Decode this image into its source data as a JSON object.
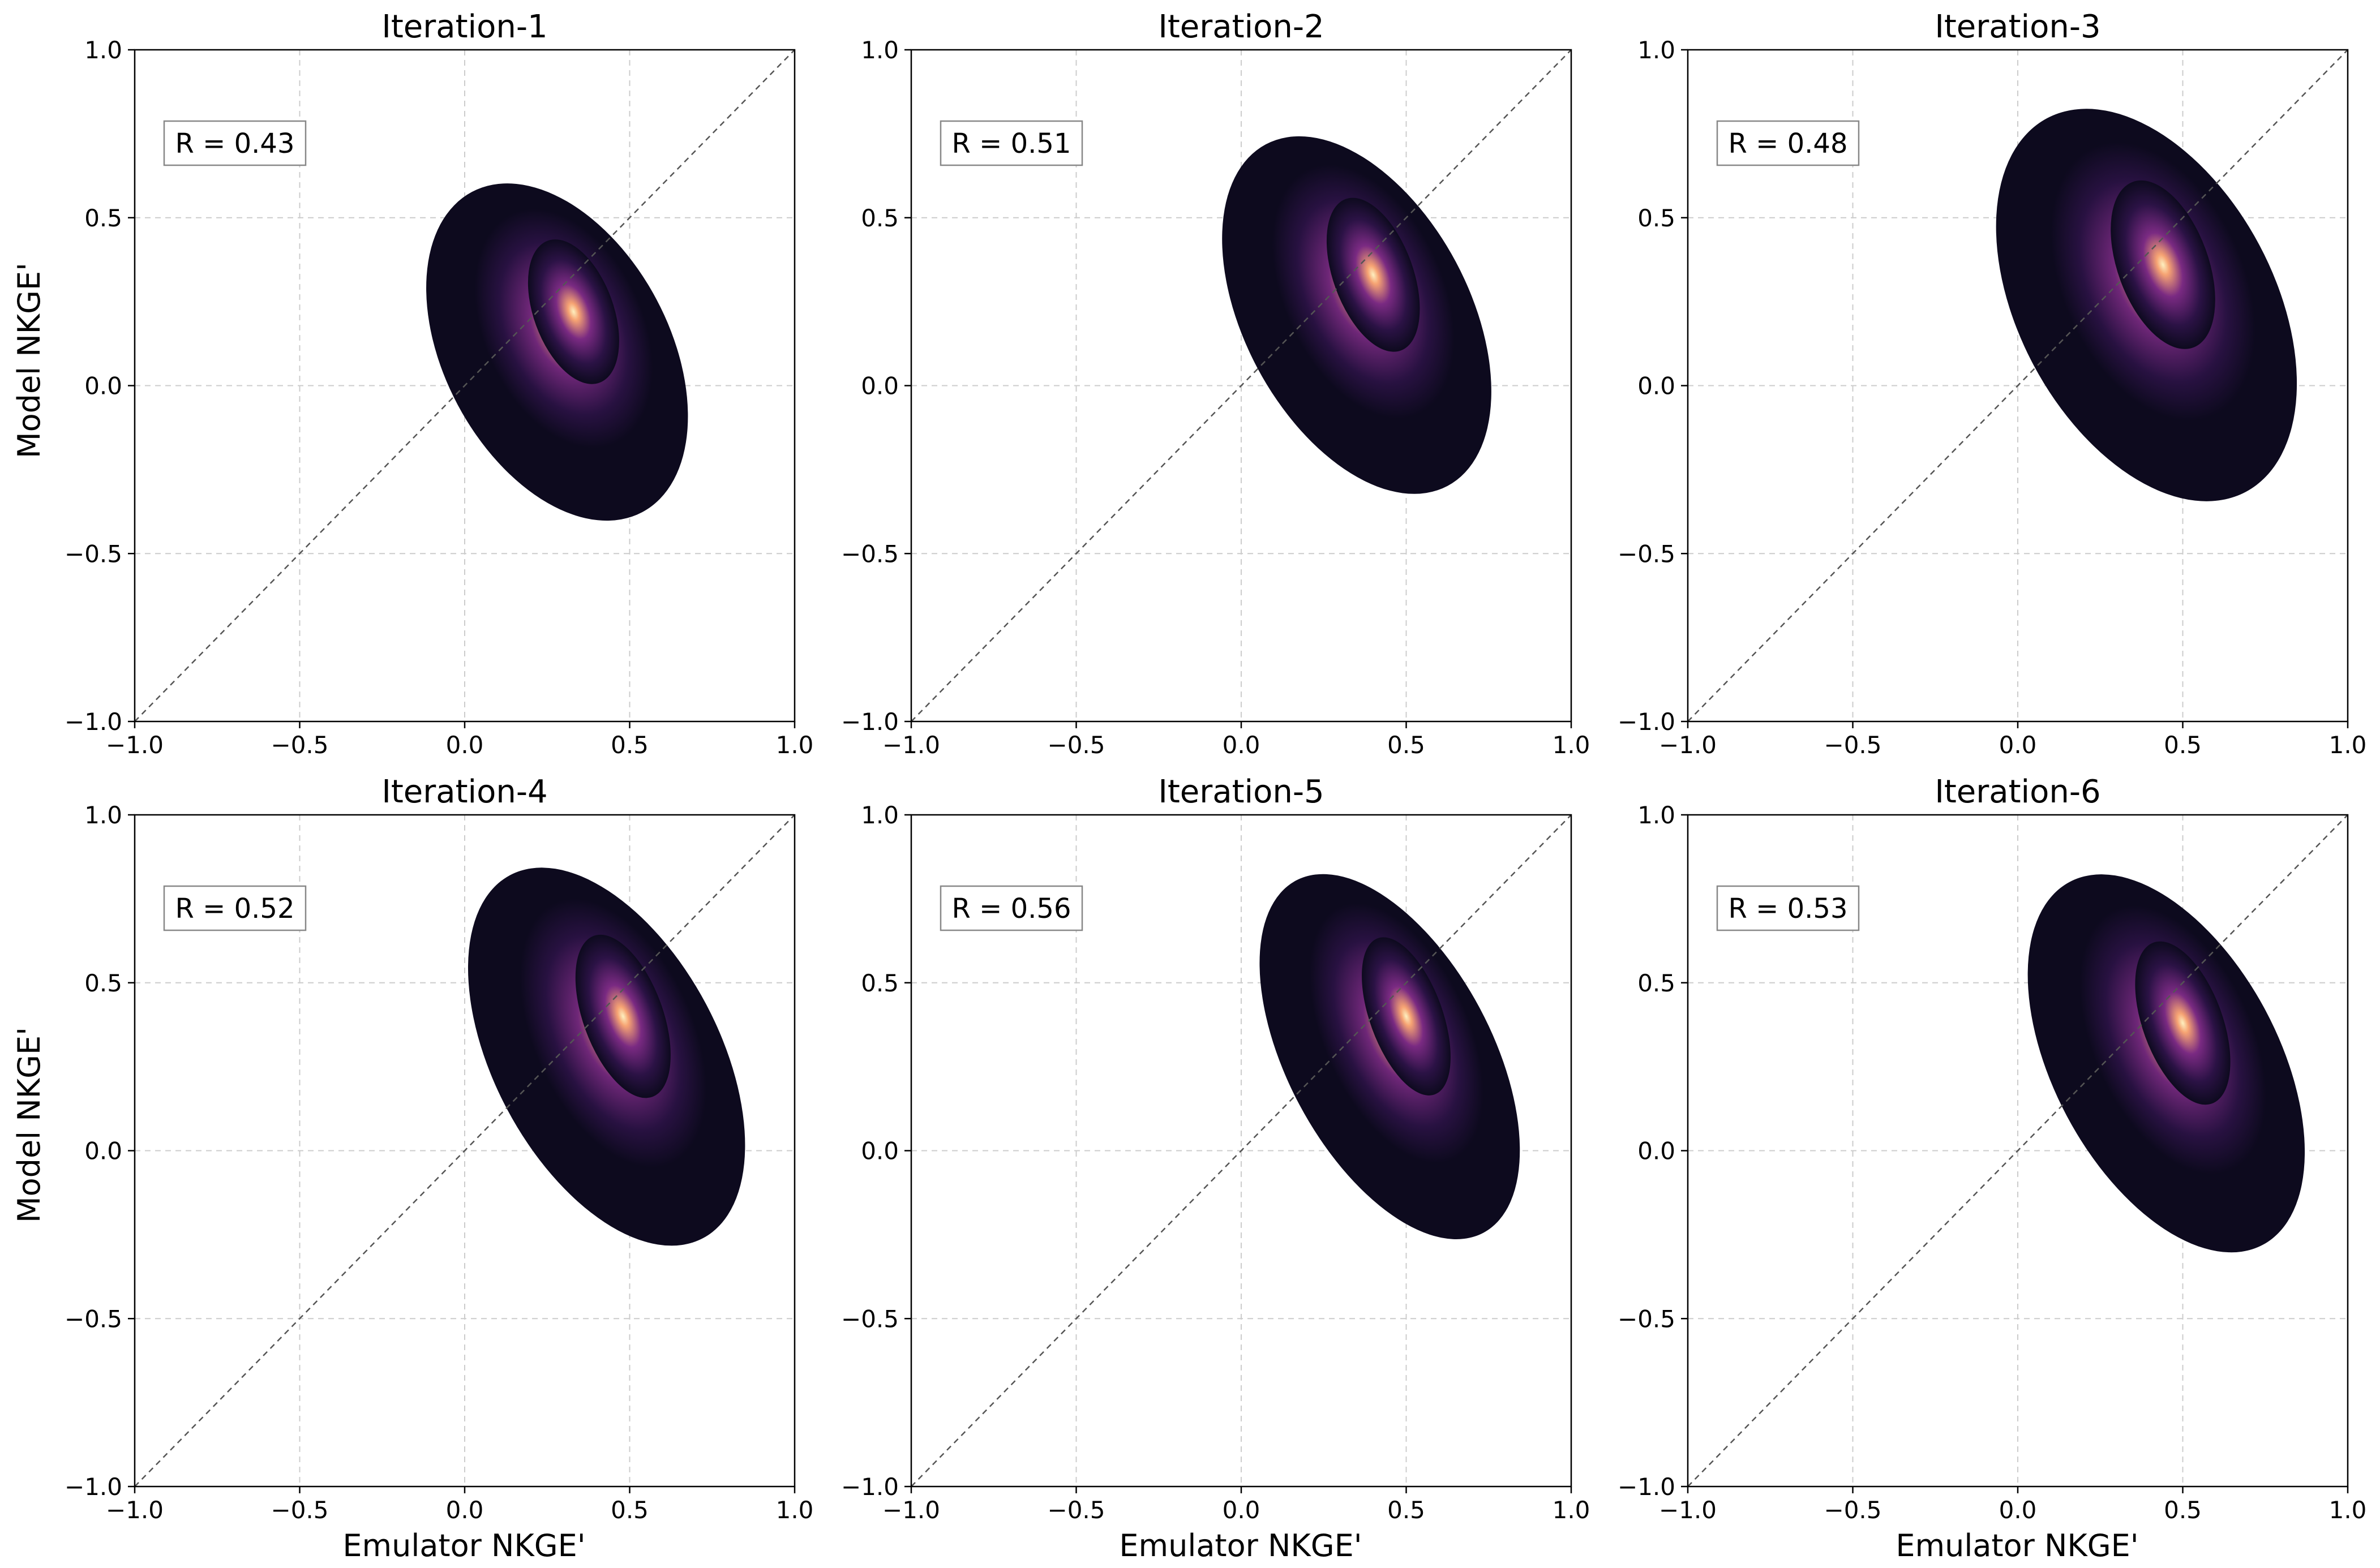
{
  "figure": {
    "xlabel": "Emulator NKGE'",
    "ylabel": "Model NKGE'"
  },
  "chart_data": [
    {
      "type": "heatmap",
      "title": "Iteration-1",
      "annotation": "R = 0.43",
      "xlim": [
        -1.0,
        1.0
      ],
      "ylim": [
        -1.0,
        1.0
      ],
      "xticks": [
        "−1.0",
        "−0.5",
        "0.0",
        "0.5",
        "1.0"
      ],
      "yticks": [
        "−1.0",
        "−0.5",
        "0.0",
        "0.5",
        "1.0"
      ],
      "grid": true,
      "reference_line": "y = x",
      "density_peak": [
        0.33,
        0.22
      ],
      "density_spread": [
        0.22,
        0.3
      ]
    },
    {
      "type": "heatmap",
      "title": "Iteration-2",
      "annotation": "R = 0.51",
      "xlim": [
        -1.0,
        1.0
      ],
      "ylim": [
        -1.0,
        1.0
      ],
      "xticks": [
        "−1.0",
        "−0.5",
        "0.0",
        "0.5",
        "1.0"
      ],
      "yticks": [
        "−1.0",
        "−0.5",
        "0.0",
        "0.5",
        "1.0"
      ],
      "grid": true,
      "reference_line": "y = x",
      "density_peak": [
        0.4,
        0.33
      ],
      "density_spread": [
        0.22,
        0.32
      ]
    },
    {
      "type": "heatmap",
      "title": "Iteration-3",
      "annotation": "R = 0.48",
      "xlim": [
        -1.0,
        1.0
      ],
      "ylim": [
        -1.0,
        1.0
      ],
      "xticks": [
        "−1.0",
        "−0.5",
        "0.0",
        "0.5",
        "1.0"
      ],
      "yticks": [
        "−1.0",
        "−0.5",
        "0.0",
        "0.5",
        "1.0"
      ],
      "grid": true,
      "reference_line": "y = x",
      "density_peak": [
        0.44,
        0.36
      ],
      "density_spread": [
        0.25,
        0.35
      ]
    },
    {
      "type": "heatmap",
      "title": "Iteration-4",
      "annotation": "R = 0.52",
      "xlim": [
        -1.0,
        1.0
      ],
      "ylim": [
        -1.0,
        1.0
      ],
      "xticks": [
        "−1.0",
        "−0.5",
        "0.0",
        "0.5",
        "1.0"
      ],
      "yticks": [
        "−1.0",
        "−0.5",
        "0.0",
        "0.5",
        "1.0"
      ],
      "grid": true,
      "reference_line": "y = x",
      "density_peak": [
        0.48,
        0.4
      ],
      "density_spread": [
        0.22,
        0.34
      ]
    },
    {
      "type": "heatmap",
      "title": "Iteration-5",
      "annotation": "R = 0.56",
      "xlim": [
        -1.0,
        1.0
      ],
      "ylim": [
        -1.0,
        1.0
      ],
      "xticks": [
        "−1.0",
        "−0.5",
        "0.0",
        "0.5",
        "1.0"
      ],
      "yticks": [
        "−1.0",
        "−0.5",
        "0.0",
        "0.5",
        "1.0"
      ],
      "grid": true,
      "reference_line": "y = x",
      "density_peak": [
        0.5,
        0.4
      ],
      "density_spread": [
        0.2,
        0.33
      ]
    },
    {
      "type": "heatmap",
      "title": "Iteration-6",
      "annotation": "R = 0.53",
      "xlim": [
        -1.0,
        1.0
      ],
      "ylim": [
        -1.0,
        1.0
      ],
      "xticks": [
        "−1.0",
        "−0.5",
        "0.0",
        "0.5",
        "1.0"
      ],
      "yticks": [
        "−1.0",
        "−0.5",
        "0.0",
        "0.5",
        "1.0"
      ],
      "grid": true,
      "reference_line": "y = x",
      "density_peak": [
        0.5,
        0.38
      ],
      "density_spread": [
        0.22,
        0.34
      ]
    }
  ],
  "colors": {
    "density_low": "#0d0a1e",
    "density_mid": "#7a2a82",
    "density_high": "#f6a373",
    "density_peak": "#fdf0c0",
    "grid": "#cccccc",
    "reference_line": "#555555",
    "axes": "#000000"
  }
}
